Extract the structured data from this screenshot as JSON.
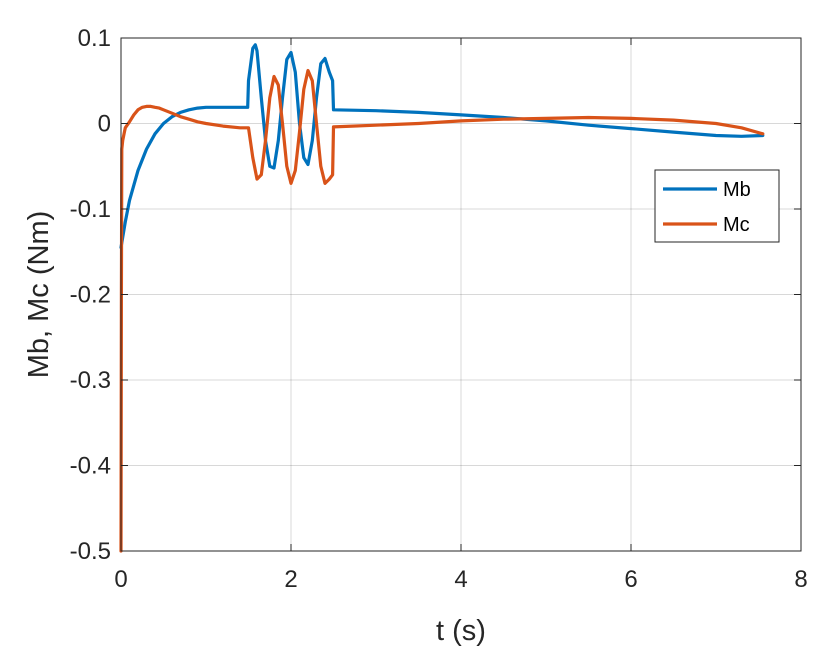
{
  "chart_data": {
    "type": "line",
    "title": "",
    "xlabel": "t (s)",
    "ylabel": "Mb, Mc (Nm)",
    "xlim": [
      0,
      8
    ],
    "ylim": [
      -0.5,
      0.1
    ],
    "xticks": [
      0,
      2,
      4,
      6,
      8
    ],
    "xtick_labels": [
      "0",
      "2",
      "4",
      "6",
      "8"
    ],
    "yticks": [
      0.1,
      0,
      -0.1,
      -0.2,
      -0.3,
      -0.4,
      -0.5
    ],
    "ytick_labels": [
      "0.1",
      "0",
      "-0.1",
      "-0.2",
      "-0.3",
      "-0.4",
      "-0.5"
    ],
    "grid": true,
    "legend_position": "right",
    "series": [
      {
        "name": "Mb",
        "color": "#0072BD",
        "x": [
          0,
          0.05,
          0.1,
          0.2,
          0.3,
          0.4,
          0.5,
          0.6,
          0.7,
          0.8,
          0.9,
          1.0,
          1.1,
          1.2,
          1.3,
          1.4,
          1.49,
          1.5,
          1.55,
          1.58,
          1.6,
          1.65,
          1.7,
          1.75,
          1.8,
          1.85,
          1.9,
          1.95,
          2.0,
          2.05,
          2.1,
          2.15,
          2.2,
          2.25,
          2.3,
          2.35,
          2.4,
          2.45,
          2.49,
          2.5,
          3.0,
          3.5,
          4.0,
          4.5,
          5.0,
          5.5,
          6.0,
          6.5,
          7.0,
          7.3,
          7.55
        ],
        "y": [
          -0.145,
          -0.115,
          -0.09,
          -0.055,
          -0.03,
          -0.012,
          0.0,
          0.008,
          0.013,
          0.016,
          0.018,
          0.019,
          0.019,
          0.019,
          0.019,
          0.019,
          0.019,
          0.05,
          0.088,
          0.092,
          0.085,
          0.03,
          -0.02,
          -0.05,
          -0.052,
          -0.02,
          0.03,
          0.075,
          0.083,
          0.06,
          0.0,
          -0.04,
          -0.048,
          -0.02,
          0.03,
          0.07,
          0.076,
          0.06,
          0.05,
          0.016,
          0.015,
          0.013,
          0.01,
          0.007,
          0.003,
          -0.002,
          -0.006,
          -0.01,
          -0.014,
          -0.015,
          -0.014
        ]
      },
      {
        "name": "Mc",
        "color": "#D95319",
        "x": [
          0,
          0.005,
          0.01,
          0.02,
          0.04,
          0.05,
          0.1,
          0.15,
          0.2,
          0.25,
          0.3,
          0.35,
          0.4,
          0.45,
          0.5,
          0.6,
          0.7,
          0.8,
          0.9,
          1.0,
          1.2,
          1.4,
          1.49,
          1.5,
          1.55,
          1.6,
          1.65,
          1.7,
          1.75,
          1.8,
          1.85,
          1.9,
          1.95,
          2.0,
          2.05,
          2.1,
          2.15,
          2.2,
          2.25,
          2.3,
          2.35,
          2.4,
          2.45,
          2.49,
          2.5,
          3.0,
          3.5,
          4.0,
          4.5,
          5.0,
          5.5,
          6.0,
          6.5,
          7.0,
          7.3,
          7.55
        ],
        "y": [
          -0.5,
          -0.2,
          -0.03,
          -0.02,
          -0.01,
          -0.005,
          0.002,
          0.01,
          0.016,
          0.019,
          0.02,
          0.02,
          0.019,
          0.018,
          0.016,
          0.012,
          0.008,
          0.005,
          0.002,
          0.0,
          -0.003,
          -0.005,
          -0.005,
          -0.005,
          -0.04,
          -0.065,
          -0.06,
          -0.02,
          0.03,
          0.055,
          0.045,
          0.0,
          -0.05,
          -0.07,
          -0.055,
          -0.01,
          0.04,
          0.062,
          0.05,
          0.0,
          -0.05,
          -0.07,
          -0.065,
          -0.06,
          -0.004,
          -0.002,
          0.0,
          0.003,
          0.005,
          0.006,
          0.007,
          0.006,
          0.004,
          0.0,
          -0.005,
          -0.012
        ]
      }
    ]
  }
}
